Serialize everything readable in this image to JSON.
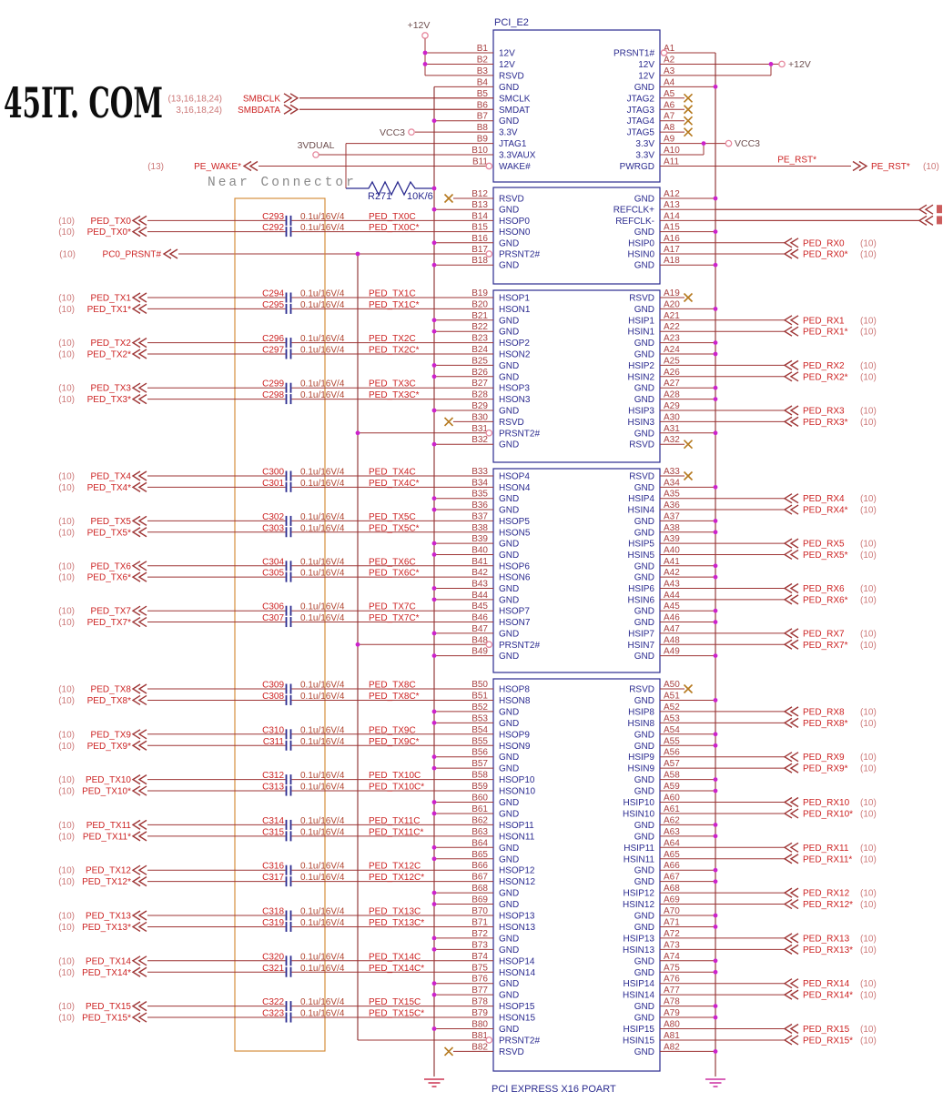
{
  "watermark": "45IT. COM",
  "near_connector_label": "Near Connector",
  "connector": {
    "refdes": "PCI_E2",
    "footer": "PCI EXPRESS X16 POART",
    "sections": [
      {
        "b": [
          [
            "B1",
            "12V"
          ],
          [
            "B2",
            "12V"
          ],
          [
            "B3",
            "RSVD"
          ],
          [
            "B4",
            "GND"
          ],
          [
            "B5",
            "SMCLK"
          ],
          [
            "B6",
            "SMDAT"
          ],
          [
            "B7",
            "GND"
          ],
          [
            "B8",
            "3.3V"
          ],
          [
            "B9",
            "JTAG1"
          ],
          [
            "B10",
            "3.3VAUX"
          ],
          [
            "B11",
            "WAKE#"
          ]
        ],
        "a": [
          [
            "A1",
            "PRSNT1#"
          ],
          [
            "A2",
            "12V"
          ],
          [
            "A3",
            "12V"
          ],
          [
            "A4",
            "GND"
          ],
          [
            "A5",
            "JTAG2"
          ],
          [
            "A6",
            "JTAG3"
          ],
          [
            "A7",
            "JTAG4"
          ],
          [
            "A8",
            "JTAG5"
          ],
          [
            "A9",
            "3.3V"
          ],
          [
            "A10",
            "3.3V"
          ],
          [
            "A11",
            "PWRGD"
          ]
        ]
      },
      {
        "b": [
          [
            "B12",
            "RSVD"
          ],
          [
            "B13",
            "GND"
          ],
          [
            "B14",
            "HSOP0"
          ],
          [
            "B15",
            "HSON0"
          ],
          [
            "B16",
            "GND"
          ],
          [
            "B17",
            "PRSNT2#"
          ],
          [
            "B18",
            "GND"
          ]
        ],
        "a": [
          [
            "A12",
            "GND"
          ],
          [
            "A13",
            "REFCLK+"
          ],
          [
            "A14",
            "REFCLK-"
          ],
          [
            "A15",
            "GND"
          ],
          [
            "A16",
            "HSIP0"
          ],
          [
            "A17",
            "HSIN0"
          ],
          [
            "A18",
            "GND"
          ]
        ]
      },
      {
        "b": [
          [
            "B19",
            "HSOP1"
          ],
          [
            "B20",
            "HSON1"
          ],
          [
            "B21",
            "GND"
          ],
          [
            "B22",
            "GND"
          ],
          [
            "B23",
            "HSOP2"
          ],
          [
            "B24",
            "HSON2"
          ],
          [
            "B25",
            "GND"
          ],
          [
            "B26",
            "GND"
          ],
          [
            "B27",
            "HSOP3"
          ],
          [
            "B28",
            "HSON3"
          ],
          [
            "B29",
            "GND"
          ],
          [
            "B30",
            "RSVD"
          ],
          [
            "B31",
            "PRSNT2#"
          ],
          [
            "B32",
            "GND"
          ]
        ],
        "a": [
          [
            "A19",
            "RSVD"
          ],
          [
            "A20",
            "GND"
          ],
          [
            "A21",
            "HSIP1"
          ],
          [
            "A22",
            "HSIN1"
          ],
          [
            "A23",
            "GND"
          ],
          [
            "A24",
            "GND"
          ],
          [
            "A25",
            "HSIP2"
          ],
          [
            "A26",
            "HSIN2"
          ],
          [
            "A27",
            "GND"
          ],
          [
            "A28",
            "GND"
          ],
          [
            "A29",
            "HSIP3"
          ],
          [
            "A30",
            "HSIN3"
          ],
          [
            "A31",
            "GND"
          ],
          [
            "A32",
            "RSVD"
          ]
        ]
      },
      {
        "b": [
          [
            "B33",
            "HSOP4"
          ],
          [
            "B34",
            "HSON4"
          ],
          [
            "B35",
            "GND"
          ],
          [
            "B36",
            "GND"
          ],
          [
            "B37",
            "HSOP5"
          ],
          [
            "B38",
            "HSON5"
          ],
          [
            "B39",
            "GND"
          ],
          [
            "B40",
            "GND"
          ],
          [
            "B41",
            "HSOP6"
          ],
          [
            "B42",
            "HSON6"
          ],
          [
            "B43",
            "GND"
          ],
          [
            "B44",
            "GND"
          ],
          [
            "B45",
            "HSOP7"
          ],
          [
            "B46",
            "HSON7"
          ],
          [
            "B47",
            "GND"
          ],
          [
            "B48",
            "PRSNT2#"
          ],
          [
            "B49",
            "GND"
          ]
        ],
        "a": [
          [
            "A33",
            "RSVD"
          ],
          [
            "A34",
            "GND"
          ],
          [
            "A35",
            "HSIP4"
          ],
          [
            "A36",
            "HSIN4"
          ],
          [
            "A37",
            "GND"
          ],
          [
            "A38",
            "GND"
          ],
          [
            "A39",
            "HSIP5"
          ],
          [
            "A40",
            "HSIN5"
          ],
          [
            "A41",
            "GND"
          ],
          [
            "A42",
            "GND"
          ],
          [
            "A43",
            "HSIP6"
          ],
          [
            "A44",
            "HSIN6"
          ],
          [
            "A45",
            "GND"
          ],
          [
            "A46",
            "GND"
          ],
          [
            "A47",
            "HSIP7"
          ],
          [
            "A48",
            "HSIN7"
          ],
          [
            "A49",
            "GND"
          ]
        ]
      },
      {
        "b": [
          [
            "B50",
            "HSOP8"
          ],
          [
            "B51",
            "HSON8"
          ],
          [
            "B52",
            "GND"
          ],
          [
            "B53",
            "GND"
          ],
          [
            "B54",
            "HSOP9"
          ],
          [
            "B55",
            "HSON9"
          ],
          [
            "B56",
            "GND"
          ],
          [
            "B57",
            "GND"
          ],
          [
            "B58",
            "HSOP10"
          ],
          [
            "B59",
            "HSON10"
          ],
          [
            "B60",
            "GND"
          ],
          [
            "B61",
            "GND"
          ],
          [
            "B62",
            "HSOP11"
          ],
          [
            "B63",
            "HSON11"
          ],
          [
            "B64",
            "GND"
          ],
          [
            "B65",
            "GND"
          ],
          [
            "B66",
            "HSOP12"
          ],
          [
            "B67",
            "HSON12"
          ],
          [
            "B68",
            "GND"
          ],
          [
            "B69",
            "GND"
          ],
          [
            "B70",
            "HSOP13"
          ],
          [
            "B71",
            "HSON13"
          ],
          [
            "B72",
            "GND"
          ],
          [
            "B73",
            "GND"
          ],
          [
            "B74",
            "HSOP14"
          ],
          [
            "B75",
            "HSON14"
          ],
          [
            "B76",
            "GND"
          ],
          [
            "B77",
            "GND"
          ],
          [
            "B78",
            "HSOP15"
          ],
          [
            "B79",
            "HSON15"
          ],
          [
            "B80",
            "GND"
          ],
          [
            "B81",
            "PRSNT2#"
          ],
          [
            "B82",
            "RSVD"
          ]
        ],
        "a": [
          [
            "A50",
            "RSVD"
          ],
          [
            "A51",
            "GND"
          ],
          [
            "A52",
            "HSIP8"
          ],
          [
            "A53",
            "HSIN8"
          ],
          [
            "A54",
            "GND"
          ],
          [
            "A55",
            "GND"
          ],
          [
            "A56",
            "HSIP9"
          ],
          [
            "A57",
            "HSIN9"
          ],
          [
            "A58",
            "GND"
          ],
          [
            "A59",
            "GND"
          ],
          [
            "A60",
            "HSIP10"
          ],
          [
            "A61",
            "HSIN10"
          ],
          [
            "A62",
            "GND"
          ],
          [
            "A63",
            "GND"
          ],
          [
            "A64",
            "HSIP11"
          ],
          [
            "A65",
            "HSIN11"
          ],
          [
            "A66",
            "GND"
          ],
          [
            "A67",
            "GND"
          ],
          [
            "A68",
            "HSIP12"
          ],
          [
            "A69",
            "HSIN12"
          ],
          [
            "A70",
            "GND"
          ],
          [
            "A71",
            "GND"
          ],
          [
            "A72",
            "HSIP13"
          ],
          [
            "A73",
            "HSIN13"
          ],
          [
            "A74",
            "GND"
          ],
          [
            "A75",
            "GND"
          ],
          [
            "A76",
            "HSIP14"
          ],
          [
            "A77",
            "HSIN14"
          ],
          [
            "A78",
            "GND"
          ],
          [
            "A79",
            "GND"
          ],
          [
            "A80",
            "HSIP15"
          ],
          [
            "A81",
            "HSIN15"
          ],
          [
            "A82",
            "GND"
          ]
        ]
      }
    ]
  },
  "no_connect_pins": [
    "B12",
    "B30",
    "B82",
    "A5",
    "A6",
    "A7",
    "A8",
    "A19",
    "A32",
    "A33",
    "A50"
  ],
  "circle_pins": [
    "B11",
    "B17",
    "B31",
    "B48",
    "B81",
    "A1"
  ],
  "power": {
    "p12v_left": "+12V",
    "vcc3_left": "VCC3",
    "v3dual": "3VDUAL",
    "p12v_right": "+12V",
    "vcc3_right": "VCC3"
  },
  "pullup": {
    "ref": "R271",
    "value": "10K/6"
  },
  "smbus": [
    {
      "pages": "(13,16,18,24)",
      "name": "SMBCLK",
      "pin": "B5"
    },
    {
      "pages": "3,16,18,24)",
      "name": "SMBDATA",
      "pin": "B6"
    }
  ],
  "pe_wake": {
    "pages": "(13)",
    "name": "PE_WAKE*",
    "pin": "B11"
  },
  "pc0_prsnt": {
    "pages": "(10)",
    "name": "PC0_PRSNT#",
    "pin": "B17"
  },
  "pe_rst": {
    "wire_label": "PE_RST*",
    "name": "PE_RST*",
    "pages": "(10)",
    "pin": "A11"
  },
  "tx_channels": [
    {
      "pages": "(10)",
      "name": "PED_TX0",
      "name_n": "PED_TX0*",
      "cap_p": "C293",
      "cap_n": "C292",
      "value": "0.1u/16V/4",
      "net_p": "PED_TX0C",
      "net_n": "PED_TX0C*",
      "pin_p": "B14",
      "pin_n": "B15"
    },
    {
      "pages": "(10)",
      "name": "PED_TX1",
      "name_n": "PED_TX1*",
      "cap_p": "C294",
      "cap_n": "C295",
      "value": "0.1u/16V/4",
      "net_p": "PED_TX1C",
      "net_n": "PED_TX1C*",
      "pin_p": "B19",
      "pin_n": "B20"
    },
    {
      "pages": "(10)",
      "name": "PED_TX2",
      "name_n": "PED_TX2*",
      "cap_p": "C296",
      "cap_n": "C297",
      "value": "0.1u/16V/4",
      "net_p": "PED_TX2C",
      "net_n": "PED_TX2C*",
      "pin_p": "B23",
      "pin_n": "B24"
    },
    {
      "pages": "(10)",
      "name": "PED_TX3",
      "name_n": "PED_TX3*",
      "cap_p": "C299",
      "cap_n": "C298",
      "value": "0.1u/16V/4",
      "net_p": "PED_TX3C",
      "net_n": "PED_TX3C*",
      "pin_p": "B27",
      "pin_n": "B28"
    },
    {
      "pages": "(10)",
      "name": "PED_TX4",
      "name_n": "PED_TX4*",
      "cap_p": "C300",
      "cap_n": "C301",
      "value": "0.1u/16V/4",
      "net_p": "PED_TX4C",
      "net_n": "PED_TX4C*",
      "pin_p": "B33",
      "pin_n": "B34"
    },
    {
      "pages": "(10)",
      "name": "PED_TX5",
      "name_n": "PED_TX5*",
      "cap_p": "C302",
      "cap_n": "C303",
      "value": "0.1u/16V/4",
      "net_p": "PED_TX5C",
      "net_n": "PED_TX5C*",
      "pin_p": "B37",
      "pin_n": "B38"
    },
    {
      "pages": "(10)",
      "name": "PED_TX6",
      "name_n": "PED_TX6*",
      "cap_p": "C304",
      "cap_n": "C305",
      "value": "0.1u/16V/4",
      "net_p": "PED_TX6C",
      "net_n": "PED_TX6C*",
      "pin_p": "B41",
      "pin_n": "B42"
    },
    {
      "pages": "(10)",
      "name": "PED_TX7",
      "name_n": "PED_TX7*",
      "cap_p": "C306",
      "cap_n": "C307",
      "value": "0.1u/16V/4",
      "net_p": "PED_TX7C",
      "net_n": "PED_TX7C*",
      "pin_p": "B45",
      "pin_n": "B46"
    },
    {
      "pages": "(10)",
      "name": "PED_TX8",
      "name_n": "PED_TX8*",
      "cap_p": "C309",
      "cap_n": "C308",
      "value": "0.1u/16V/4",
      "net_p": "PED_TX8C",
      "net_n": "PED_TX8C*",
      "pin_p": "B50",
      "pin_n": "B51"
    },
    {
      "pages": "(10)",
      "name": "PED_TX9",
      "name_n": "PED_TX9*",
      "cap_p": "C310",
      "cap_n": "C311",
      "value": "0.1u/16V/4",
      "net_p": "PED_TX9C",
      "net_n": "PED_TX9C*",
      "pin_p": "B54",
      "pin_n": "B55"
    },
    {
      "pages": "(10)",
      "name": "PED_TX10",
      "name_n": "PED_TX10*",
      "cap_p": "C312",
      "cap_n": "C313",
      "value": "0.1u/16V/4",
      "net_p": "PED_TX10C",
      "net_n": "PED_TX10C*",
      "pin_p": "B58",
      "pin_n": "B59"
    },
    {
      "pages": "(10)",
      "name": "PED_TX11",
      "name_n": "PED_TX11*",
      "cap_p": "C314",
      "cap_n": "C315",
      "value": "0.1u/16V/4",
      "net_p": "PED_TX11C",
      "net_n": "PED_TX11C*",
      "pin_p": "B62",
      "pin_n": "B63"
    },
    {
      "pages": "(10)",
      "name": "PED_TX12",
      "name_n": "PED_TX12*",
      "cap_p": "C316",
      "cap_n": "C317",
      "value": "0.1u/16V/4",
      "net_p": "PED_TX12C",
      "net_n": "PED_TX12C*",
      "pin_p": "B66",
      "pin_n": "B67"
    },
    {
      "pages": "(10)",
      "name": "PED_TX13",
      "name_n": "PED_TX13*",
      "cap_p": "C318",
      "cap_n": "C319",
      "value": "0.1u/16V/4",
      "net_p": "PED_TX13C",
      "net_n": "PED_TX13C*",
      "pin_p": "B70",
      "pin_n": "B71"
    },
    {
      "pages": "(10)",
      "name": "PED_TX14",
      "name_n": "PED_TX14*",
      "cap_p": "C320",
      "cap_n": "C321",
      "value": "0.1u/16V/4",
      "net_p": "PED_TX14C",
      "net_n": "PED_TX14C*",
      "pin_p": "B74",
      "pin_n": "B75"
    },
    {
      "pages": "(10)",
      "name": "PED_TX15",
      "name_n": "PED_TX15*",
      "cap_p": "C322",
      "cap_n": "C323",
      "value": "0.1u/16V/4",
      "net_p": "PED_TX15C",
      "net_n": "PED_TX15C*",
      "pin_p": "B78",
      "pin_n": "B79"
    }
  ],
  "rx_channels": [
    {
      "name": "PED_RX0",
      "name_n": "PED_RX0*",
      "pages": "(10)",
      "pin_p": "A16",
      "pin_n": "A17"
    },
    {
      "name": "PED_RX1",
      "name_n": "PED_RX1*",
      "pages": "(10)",
      "pin_p": "A21",
      "pin_n": "A22"
    },
    {
      "name": "PED_RX2",
      "name_n": "PED_RX2*",
      "pages": "(10)",
      "pin_p": "A25",
      "pin_n": "A26"
    },
    {
      "name": "PED_RX3",
      "name_n": "PED_RX3*",
      "pages": "(10)",
      "pin_p": "A29",
      "pin_n": "A30"
    },
    {
      "name": "PED_RX4",
      "name_n": "PED_RX4*",
      "pages": "(10)",
      "pin_p": "A35",
      "pin_n": "A36"
    },
    {
      "name": "PED_RX5",
      "name_n": "PED_RX5*",
      "pages": "(10)",
      "pin_p": "A39",
      "pin_n": "A40"
    },
    {
      "name": "PED_RX6",
      "name_n": "PED_RX6*",
      "pages": "(10)",
      "pin_p": "A43",
      "pin_n": "A44"
    },
    {
      "name": "PED_RX7",
      "name_n": "PED_RX7*",
      "pages": "(10)",
      "pin_p": "A47",
      "pin_n": "A48"
    },
    {
      "name": "PED_RX8",
      "name_n": "PED_RX8*",
      "pages": "(10)",
      "pin_p": "A52",
      "pin_n": "A53"
    },
    {
      "name": "PED_RX9",
      "name_n": "PED_RX9*",
      "pages": "(10)",
      "pin_p": "A56",
      "pin_n": "A57"
    },
    {
      "name": "PED_RX10",
      "name_n": "PED_RX10*",
      "pages": "(10)",
      "pin_p": "A60",
      "pin_n": "A61"
    },
    {
      "name": "PED_RX11",
      "name_n": "PED_RX11*",
      "pages": "(10)",
      "pin_p": "A64",
      "pin_n": "A65"
    },
    {
      "name": "PED_RX12",
      "name_n": "PED_RX12*",
      "pages": "(10)",
      "pin_p": "A68",
      "pin_n": "A69"
    },
    {
      "name": "PED_RX13",
      "name_n": "PED_RX13*",
      "pages": "(10)",
      "pin_p": "A72",
      "pin_n": "A73"
    },
    {
      "name": "PED_RX14",
      "name_n": "PED_RX14*",
      "pages": "(10)",
      "pin_p": "A76",
      "pin_n": "A77"
    },
    {
      "name": "PED_RX15",
      "name_n": "PED_RX15*",
      "pages": "(10)",
      "pin_p": "A80",
      "pin_n": "A81"
    }
  ],
  "colors": {
    "wire": "#9e3535",
    "bus": "#8a2b2b",
    "pin_text": "#a84040",
    "name_text": "#2a2a8f",
    "box": "#2a2a8f",
    "net_label": "#cc2222",
    "page_ref": "#cc7777",
    "value_text": "#b04530",
    "cap_symbol": "#2a2a8f",
    "orange_box": "#d2842c",
    "junction": "#cc22cc",
    "no_connect": "#b5791f",
    "pin_circle": "#e6889e",
    "ground_b": "#cc3350",
    "ground_a": "#cc2fa0",
    "power_label": "#6e4f4f",
    "resistor": "#2a2a8f"
  }
}
